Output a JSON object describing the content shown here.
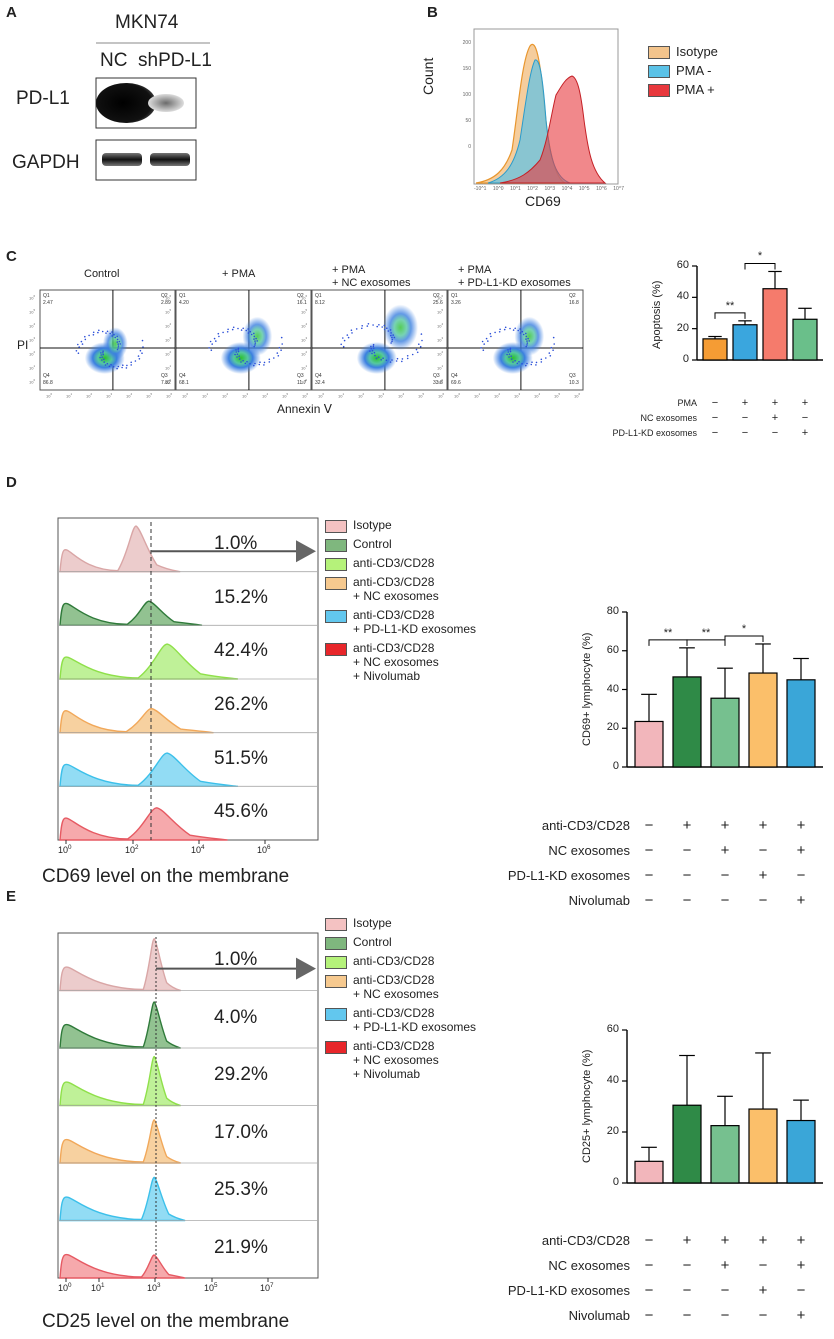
{
  "panel_labels": [
    "A",
    "B",
    "C",
    "D",
    "E"
  ],
  "panelA": {
    "cell_line": "MKN74",
    "lanes": [
      "NC",
      "shPD-L1"
    ],
    "rows": [
      "PD-L1",
      "GAPDH"
    ]
  },
  "panelB": {
    "ylabel": "Count",
    "xlabel": "CD69",
    "legend": [
      {
        "label": "Isotype",
        "color": "#f3c48c"
      },
      {
        "label": "PMA -",
        "color": "#5bc2e7"
      },
      {
        "label": "PMA +",
        "color": "#e8383d"
      }
    ],
    "yticks": [
      "0",
      "50",
      "100",
      "150",
      "200"
    ],
    "xticks": [
      "-10^1",
      "10^0",
      "10^1",
      "10^2",
      "10^3",
      "10^4",
      "10^5",
      "10^6",
      "10^7"
    ]
  },
  "panelC": {
    "plots": [
      {
        "title": "Control",
        "title2": "",
        "q1": "2.47",
        "q2": "2.89",
        "q4": "86.8",
        "q3": "7.82"
      },
      {
        "title": "+ PMA",
        "title2": "",
        "q1": "4.20",
        "q2": "16.1",
        "q4": "68.1",
        "q3": "11.7"
      },
      {
        "title": "+ PMA",
        "title2": "+ NC exosomes",
        "q1": "8.12",
        "q2": "25.6",
        "q4": "32.4",
        "q3": "33.8"
      },
      {
        "title": "+ PMA",
        "title2": "+ PD-L1-KD exosomes",
        "q1": "3.26",
        "q2": "16.8",
        "q4": "69.6",
        "q3": "10.3"
      }
    ],
    "quadrant_names": [
      "Q1",
      "Q2",
      "Q4",
      "Q3"
    ],
    "ylabel": "PI",
    "xlabel": "Annexin Ⅴ",
    "y_axis_ticks": [
      "10^6",
      "10^5",
      "10^4",
      "10^3",
      "10^2",
      "10^1",
      "10^0"
    ],
    "x_axis_ticks": [
      "10^0",
      "10^1",
      "10^2",
      "10^3",
      "10^4",
      "10^5",
      "10^6"
    ]
  },
  "panelD": {
    "xlabel": "CD69 level on the membrane",
    "percentages": [
      "1.0%",
      "15.2%",
      "42.4%",
      "26.2%",
      "51.5%",
      "45.6%"
    ],
    "xticks": [
      "10^0",
      "10^2",
      "10^4",
      "10^6"
    ]
  },
  "panelE": {
    "xlabel": "CD25 level on the membrane",
    "percentages": [
      "1.0%",
      "4.0%",
      "29.2%",
      "17.0%",
      "25.3%",
      "21.9%"
    ],
    "xticks": [
      "10^0",
      "10^1",
      "10^3",
      "10^5",
      "10^7"
    ]
  },
  "legendDE": [
    {
      "lines": [
        "Isotype"
      ],
      "color": "#f4c2c2"
    },
    {
      "lines": [
        "Control"
      ],
      "color": "#7fb77e"
    },
    {
      "lines": [
        "anti-CD3/CD28"
      ],
      "color": "#b5f27a"
    },
    {
      "lines": [
        "anti-CD3/CD28",
        "+ NC exosomes"
      ],
      "color": "#f6c98f"
    },
    {
      "lines": [
        "anti-CD3/CD28",
        "+ PD-L1-KD exosomes"
      ],
      "color": "#62c7ee"
    },
    {
      "lines": [
        "anti-CD3/CD28",
        "+ NC exosomes",
        "+ Nivolumab"
      ],
      "color": "#e8262a"
    }
  ],
  "chart_data": [
    {
      "id": "C-bar",
      "type": "bar",
      "title": "",
      "ylabel": "Apoptosis (%)",
      "ylim": [
        0,
        60
      ],
      "yticks": [
        0,
        20,
        40,
        60
      ],
      "values": [
        13.5,
        22.5,
        45.5,
        26
      ],
      "errors": [
        1.5,
        2.5,
        11,
        7
      ],
      "colors": [
        "#f59c34",
        "#3aa6de",
        "#f57b6c",
        "#6abf8a"
      ],
      "significance": [
        {
          "from": 0,
          "to": 1,
          "label": "**"
        },
        {
          "from": 1,
          "to": 2,
          "label": "*"
        }
      ],
      "condition_rows": [
        {
          "label": "PMA",
          "marks": [
            "−",
            "+",
            "+",
            "+"
          ]
        },
        {
          "label": "NC exosomes",
          "marks": [
            "−",
            "−",
            "+",
            "−"
          ]
        },
        {
          "label": "PD-L1-KD exosomes",
          "marks": [
            "−",
            "−",
            "−",
            "+"
          ]
        }
      ]
    },
    {
      "id": "D-bar",
      "type": "bar",
      "title": "",
      "ylabel": "CD69+ lymphocyte (%)",
      "ylim": [
        0,
        80
      ],
      "yticks": [
        0,
        20,
        40,
        60,
        80
      ],
      "values": [
        23.5,
        46.5,
        35.5,
        48.5,
        45
      ],
      "errors": [
        14,
        15,
        15.5,
        15,
        11
      ],
      "colors": [
        "#f2b6bb",
        "#2f8a47",
        "#76c08f",
        "#fbbf6a",
        "#3aa6d8"
      ],
      "significance": [
        {
          "from": 0,
          "to": 1,
          "label": "**"
        },
        {
          "from": 1,
          "to": 2,
          "label": "**"
        },
        {
          "from": 2,
          "to": 3,
          "label": "*"
        }
      ],
      "condition_rows": [
        {
          "label": "anti-CD3/CD28",
          "marks": [
            "−",
            "+",
            "+",
            "+",
            "+"
          ]
        },
        {
          "label": "NC exosomes",
          "marks": [
            "−",
            "−",
            "+",
            "−",
            "+"
          ]
        },
        {
          "label": "PD-L1-KD exosomes",
          "marks": [
            "−",
            "−",
            "−",
            "+",
            "−"
          ]
        },
        {
          "label": "Nivolumab",
          "marks": [
            "−",
            "−",
            "−",
            "−",
            "+"
          ]
        }
      ]
    },
    {
      "id": "E-bar",
      "type": "bar",
      "title": "",
      "ylabel": "CD25+ lymphocyte (%)",
      "ylim": [
        0,
        60
      ],
      "yticks": [
        0,
        20,
        40,
        60
      ],
      "values": [
        8.5,
        30.5,
        22.5,
        29,
        24.5
      ],
      "errors": [
        5.5,
        19.5,
        11.5,
        22,
        8
      ],
      "colors": [
        "#f2b6bb",
        "#2f8a47",
        "#76c08f",
        "#fbbf6a",
        "#3aa6d8"
      ],
      "significance": [],
      "condition_rows": [
        {
          "label": "anti-CD3/CD28",
          "marks": [
            "−",
            "+",
            "+",
            "+",
            "+"
          ]
        },
        {
          "label": "NC exosomes",
          "marks": [
            "−",
            "−",
            "+",
            "−",
            "+"
          ]
        },
        {
          "label": "PD-L1-KD exosomes",
          "marks": [
            "−",
            "−",
            "−",
            "+",
            "−"
          ]
        },
        {
          "label": "Nivolumab",
          "marks": [
            "−",
            "−",
            "−",
            "−",
            "+"
          ]
        }
      ]
    }
  ]
}
